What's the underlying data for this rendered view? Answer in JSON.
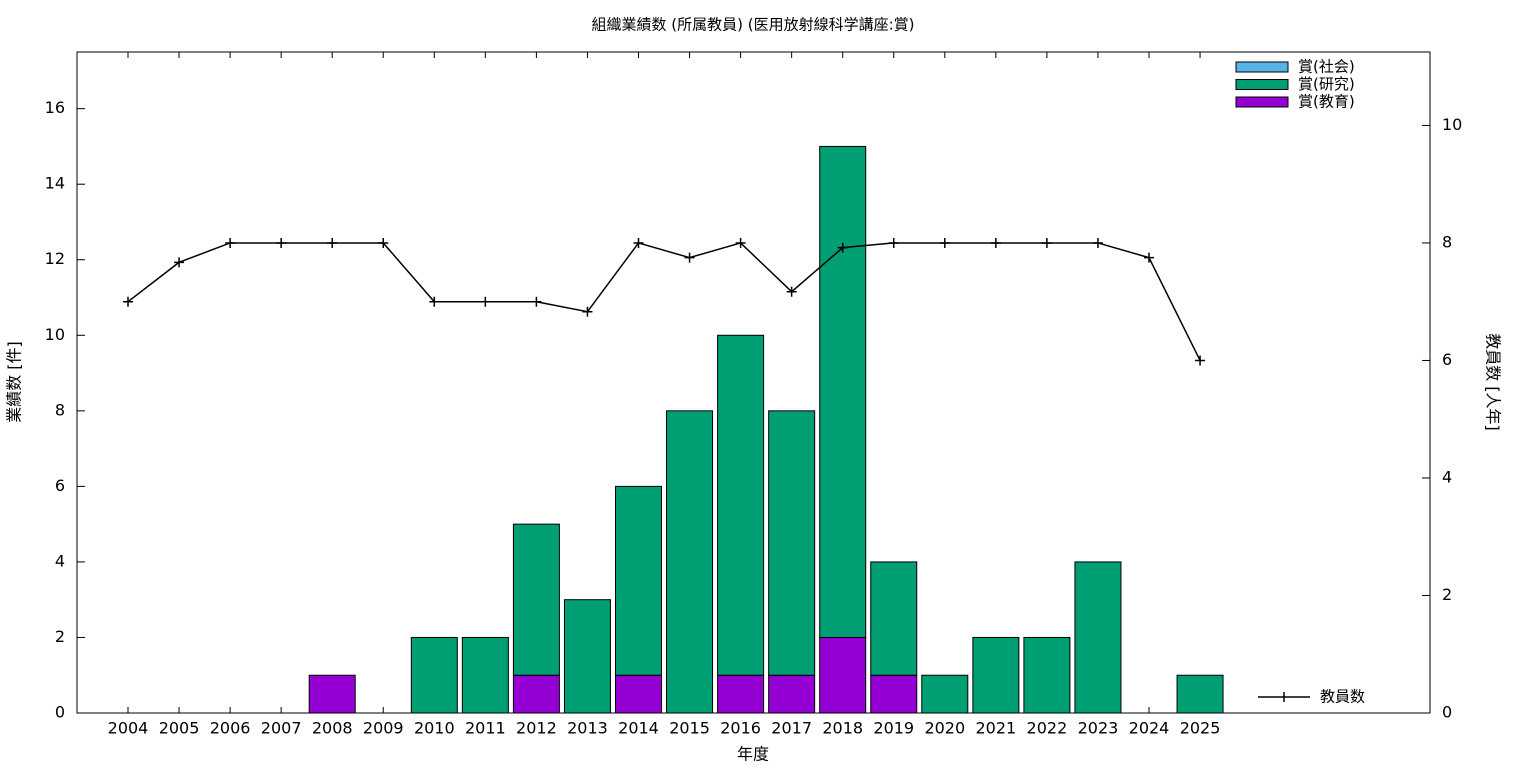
{
  "chart_data": {
    "type": "bar",
    "title": "組織業績数 (所属教員) (医用放射線科学講座:賞)",
    "xlabel": "年度",
    "ylabel": "業績数 [件]",
    "y2label": "教員数 [人年]",
    "categories": [
      "2004",
      "2005",
      "2006",
      "2007",
      "2008",
      "2009",
      "2010",
      "2011",
      "2012",
      "2013",
      "2014",
      "2015",
      "2016",
      "2017",
      "2018",
      "2019",
      "2020",
      "2021",
      "2022",
      "2023",
      "2024",
      "2025"
    ],
    "series": [
      {
        "name": "賞(社会)",
        "color": "#56b4e9",
        "values": [
          0,
          0,
          0,
          0,
          0,
          0,
          0,
          0,
          0,
          0,
          0,
          0,
          0,
          0,
          0,
          0,
          0,
          0,
          0,
          0,
          0,
          0
        ]
      },
      {
        "name": "賞(研究)",
        "color": "#009e73",
        "values": [
          0,
          0,
          0,
          0,
          0,
          0,
          2,
          2,
          4,
          3,
          5,
          8,
          9,
          7,
          13,
          3,
          1,
          2,
          2,
          4,
          0,
          1
        ]
      },
      {
        "name": "賞(教育)",
        "color": "#9400d3",
        "values": [
          0,
          0,
          0,
          0,
          1,
          0,
          0,
          0,
          1,
          0,
          1,
          0,
          1,
          1,
          2,
          1,
          0,
          0,
          0,
          0,
          0,
          0
        ]
      },
      {
        "name": "教員数",
        "type": "line",
        "axis": "y2",
        "color": "#000000",
        "values": [
          7,
          7.67,
          8,
          8,
          8,
          8,
          7,
          7,
          7,
          6.83,
          8,
          7.75,
          8,
          7.17,
          7.92,
          8,
          8,
          8,
          8,
          8,
          7.75,
          6
        ]
      }
    ],
    "ylim": [
      0,
      17.5
    ],
    "yticks": [
      0,
      2,
      4,
      6,
      8,
      10,
      12,
      14,
      16
    ],
    "y2lim": [
      0,
      11.25
    ],
    "y2ticks": [
      0,
      2,
      4,
      6,
      8,
      10
    ],
    "legend": "top-right"
  }
}
